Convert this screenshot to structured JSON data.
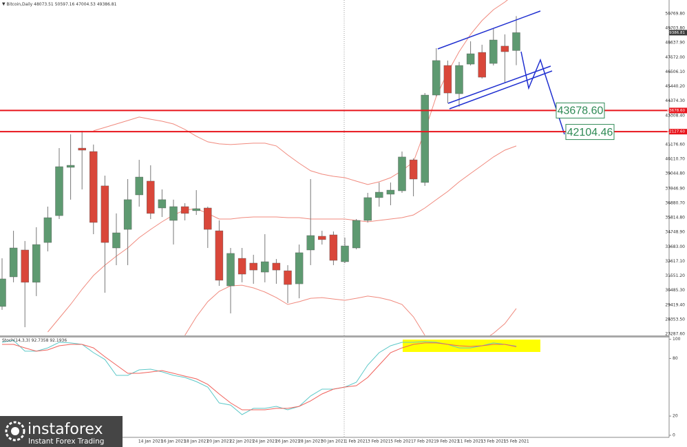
{
  "chart_data": [
    {
      "type": "candlestick",
      "title": "Bitcoin,Daily",
      "categories": [
        null,
        null,
        null,
        null,
        null,
        null,
        null,
        null,
        null,
        null,
        null,
        null,
        null,
        "14 Jan 2021",
        null,
        "16 Jan 2021",
        null,
        "18 Jan 2021",
        null,
        "20 Jan 2021",
        null,
        "22 Jan 2021",
        null,
        "24 Jan 2021",
        null,
        "26 Jan 2021",
        null,
        "28 Jan 2021",
        null,
        "30 Jan 2021",
        null,
        "1 Feb 2021",
        null,
        "3 Feb 2021",
        null,
        "5 Feb 2021",
        null,
        "7 Feb 2021",
        null,
        "9 Feb 2021",
        null,
        "11 Feb 2021",
        null,
        "13 Feb 2021",
        null,
        "15 Feb 2021"
      ],
      "open": [
        29310,
        31480,
        33450,
        31080,
        34000,
        35970,
        39510,
        40920,
        40670,
        38150,
        33600,
        34960,
        37490,
        38500,
        36530,
        35620,
        36630,
        36330,
        36530,
        34860,
        30820,
        32840,
        32490,
        31830,
        32490,
        31930,
        30970,
        33450,
        34460,
        34560,
        32590,
        33600,
        35620,
        37290,
        37540,
        37790,
        40060,
        38400,
        44810,
        46980,
        44910,
        47080,
        47940,
        47130,
        48400,
        48073.51
      ],
      "high": [
        32840,
        34860,
        34110,
        35120,
        36630,
        40920,
        41930,
        42190,
        41180,
        38900,
        36130,
        38650,
        40060,
        39660,
        37890,
        37140,
        36880,
        37840,
        36630,
        35620,
        33600,
        33600,
        33100,
        34610,
        32790,
        32340,
        33850,
        38650,
        34860,
        34810,
        34360,
        35720,
        37640,
        38400,
        38400,
        40670,
        40170,
        44960,
        48250,
        47340,
        47240,
        48750,
        48500,
        49660,
        49260,
        50597.16
      ],
      "low": [
        29060,
        31080,
        27790,
        30070,
        33350,
        35720,
        37140,
        37890,
        34610,
        30320,
        32340,
        32340,
        36630,
        35720,
        35870,
        33850,
        35620,
        36020,
        33600,
        30820,
        28800,
        31080,
        30970,
        31080,
        30970,
        29560,
        29910,
        32340,
        33850,
        32340,
        32490,
        33500,
        35470,
        36630,
        36730,
        37640,
        37390,
        38150,
        44710,
        44210,
        43950,
        46980,
        46020,
        46980,
        45720,
        47004.53
      ],
      "close": [
        31330,
        33600,
        31080,
        33850,
        35820,
        39560,
        39660,
        40770,
        35470,
        34000,
        34710,
        37140,
        38800,
        36130,
        37140,
        36630,
        36130,
        36480,
        34960,
        31230,
        33200,
        31680,
        31980,
        32590,
        31980,
        30920,
        33250,
        34510,
        34210,
        32690,
        33750,
        35620,
        37290,
        37690,
        37840,
        40270,
        38650,
        44810,
        47340,
        44960,
        46980,
        47840,
        46120,
        48850,
        47990,
        49386.81
      ],
      "up_color": "#5e9a71",
      "down_color": "#d9473a",
      "overlays": [
        {
          "color": "#f0897d",
          "values": [
            null,
            null,
            null,
            null,
            null,
            null,
            null,
            null,
            42190,
            42440,
            42690,
            42940,
            43200,
            43040,
            42890,
            42690,
            42290,
            41790,
            41380,
            41230,
            41180,
            41230,
            41280,
            41280,
            41080,
            40420,
            39810,
            39260,
            39010,
            38850,
            38750,
            38500,
            38250,
            38450,
            38750,
            39260,
            39910,
            42190,
            44710,
            46480,
            47990,
            49260,
            50270,
            51070,
            51630,
            52300
          ]
        },
        {
          "color": "#f0897d",
          "values": [
            null,
            null,
            null,
            null,
            27440,
            28450,
            29460,
            30570,
            31580,
            32340,
            33000,
            33600,
            34360,
            34960,
            35520,
            36020,
            36380,
            36480,
            36130,
            35720,
            35720,
            35820,
            35870,
            35870,
            35870,
            35820,
            35820,
            35720,
            35720,
            35720,
            35720,
            35620,
            35520,
            35620,
            35720,
            35820,
            36020,
            36530,
            37140,
            37740,
            38450,
            39060,
            39660,
            40270,
            40770,
            41080
          ]
        },
        {
          "color": "#f0897d",
          "values": [
            null,
            null,
            null,
            null,
            null,
            null,
            null,
            null,
            null,
            null,
            null,
            null,
            null,
            null,
            null,
            null,
            27190,
            28550,
            29660,
            30420,
            30820,
            30870,
            30670,
            30370,
            29960,
            29460,
            29660,
            29910,
            29960,
            29860,
            29760,
            29910,
            30070,
            29960,
            29760,
            29460,
            28550,
            27190,
            null,
            null,
            null,
            null,
            26780,
            27340,
            28050,
            29160
          ]
        }
      ],
      "levels": [
        {
          "value": 43678.6,
          "label": "43678.60"
        },
        {
          "value": 42127.6,
          "label": "42127.60"
        }
      ],
      "level_color": "#e8141b",
      "targets": [
        {
          "value": 43678.6,
          "label": "43678.60"
        },
        {
          "value": 42104.46,
          "label": "42104.46"
        }
      ],
      "target_color": "#2f8a55",
      "ylim": [
        27186.5,
        51780
      ],
      "yticks": [
        {
          "value": 50769.8,
          "label": "50769.80"
        },
        {
          "value": 49703.8,
          "label": "49703.80"
        },
        {
          "value": 48637.9,
          "label": "48637.90"
        },
        {
          "value": 47572.0,
          "label": "47572.00"
        },
        {
          "value": 46506.1,
          "label": "46506.10"
        },
        {
          "value": 45440.2,
          "label": "45440.20"
        },
        {
          "value": 44374.3,
          "label": "44374.30"
        },
        {
          "value": 43308.4,
          "label": "43308.40"
        },
        {
          "value": 41176.6,
          "label": "41176.60"
        },
        {
          "value": 40110.7,
          "label": "40110.70"
        },
        {
          "value": 39044.8,
          "label": "39044.80"
        },
        {
          "value": 37946.9,
          "label": "37946.90"
        },
        {
          "value": 36880.7,
          "label": "36880.70"
        },
        {
          "value": 35814.8,
          "label": "35814.80"
        },
        {
          "value": 34748.9,
          "label": "34748.90"
        },
        {
          "value": 33683.0,
          "label": "33683.00"
        },
        {
          "value": 32617.1,
          "label": "32617.10"
        },
        {
          "value": 31551.2,
          "label": "31551.20"
        },
        {
          "value": 30485.3,
          "label": "30485.30"
        },
        {
          "value": 29419.4,
          "label": "29419.40"
        },
        {
          "value": 28353.5,
          "label": "28353.50"
        },
        {
          "value": 27287.6,
          "label": "27287.60"
        }
      ]
    },
    {
      "type": "line",
      "title": "Stoch(14,3,3)",
      "series": [
        {
          "color": "#5cc8c8",
          "values": [
            96.8,
            98.9,
            87.5,
            87.5,
            91.0,
            96.8,
            96.1,
            94.6,
            86.0,
            78.9,
            62.4,
            62.4,
            68.1,
            68.8,
            66.0,
            62.4,
            60.2,
            55.9,
            50.2,
            33.7,
            31.5,
            21.5,
            28.0,
            28.0,
            30.1,
            26.5,
            30.1,
            40.9,
            48.0,
            48.0,
            50.2,
            55.2,
            73.1,
            86.0,
            93.2,
            96.8,
            96.8,
            97.5,
            96.8,
            94.6,
            91.0,
            91.0,
            93.2,
            96.1,
            94.6,
            92.7358
          ]
        },
        {
          "color": "#f0605a",
          "values": [
            94.6,
            94.6,
            91.0,
            87.5,
            88.9,
            93.2,
            94.6,
            94.6,
            91.0,
            81.7,
            73.1,
            64.5,
            64.5,
            65.9,
            67.4,
            64.5,
            61.6,
            58.8,
            53.0,
            43.0,
            33.7,
            26.5,
            26.5,
            26.5,
            28.0,
            28.0,
            30.1,
            35.8,
            43.0,
            48.0,
            50.2,
            51.6,
            60.2,
            73.1,
            86.0,
            91.0,
            94.6,
            96.1,
            96.1,
            94.6,
            93.2,
            92.5,
            93.2,
            94.6,
            94.6,
            92.1936
          ]
        }
      ],
      "ylim": [
        0,
        100
      ],
      "yticks": [
        100,
        80,
        20,
        0
      ]
    }
  ],
  "branding": {
    "name": "instaforex",
    "tagline": "Instant Forex Trading"
  }
}
